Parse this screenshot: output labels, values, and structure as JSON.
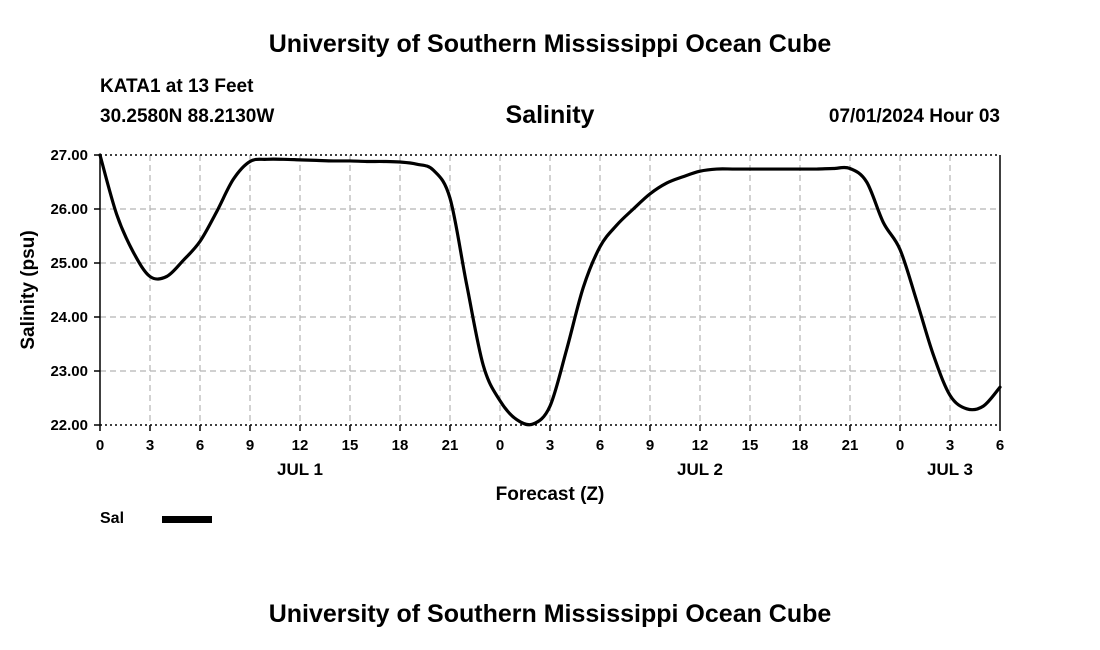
{
  "header": {
    "title": "University of Southern Mississippi Ocean Cube",
    "station": "KATA1 at 13 Feet",
    "coords": "30.2580N  88.2130W",
    "timestamp": "07/01/2024 Hour 03"
  },
  "footer": {
    "title": "University of Southern Mississippi Ocean Cube"
  },
  "chart_data": {
    "type": "line",
    "title": "Salinity",
    "xlabel": "Forecast (Z)",
    "ylabel": "Salinity (psu)",
    "xlim": [
      0,
      54
    ],
    "ylim": [
      22.0,
      27.0
    ],
    "grid": true,
    "y_ticks": [
      "22.00",
      "23.00",
      "24.00",
      "25.00",
      "26.00",
      "27.00"
    ],
    "x_tick_labels": [
      "0",
      "3",
      "6",
      "9",
      "12",
      "15",
      "18",
      "21",
      "0",
      "3",
      "6",
      "9",
      "12",
      "15",
      "18",
      "21",
      "0",
      "3",
      "6"
    ],
    "day_labels": [
      {
        "label": "JUL 1",
        "hour": 12
      },
      {
        "label": "JUL 2",
        "hour": 36
      },
      {
        "label": "JUL 3",
        "hour": 51
      }
    ],
    "legend": [
      {
        "name": "Sal",
        "color": "#000000"
      }
    ],
    "series": [
      {
        "name": "Sal",
        "x": [
          0,
          1,
          2,
          3,
          4,
          5,
          6,
          7,
          8,
          9,
          10,
          11,
          12,
          13,
          14,
          15,
          16,
          17,
          18,
          19,
          20,
          21,
          22,
          23,
          24,
          25,
          26,
          27,
          28,
          29,
          30,
          31,
          32,
          33,
          34,
          35,
          36,
          37,
          38,
          39,
          40,
          41,
          42,
          43,
          44,
          45,
          46,
          47,
          48,
          49,
          50,
          51,
          52,
          53,
          54
        ],
        "values": [
          27.0,
          25.9,
          25.2,
          24.75,
          24.75,
          25.05,
          25.4,
          25.95,
          26.55,
          26.88,
          26.92,
          26.92,
          26.91,
          26.9,
          26.89,
          26.89,
          26.88,
          26.88,
          26.87,
          26.83,
          26.72,
          26.2,
          24.6,
          23.1,
          22.45,
          22.1,
          22.02,
          22.35,
          23.4,
          24.55,
          25.3,
          25.7,
          26.0,
          26.28,
          26.48,
          26.6,
          26.7,
          26.74,
          26.74,
          26.74,
          26.74,
          26.74,
          26.74,
          26.74,
          26.75,
          26.75,
          26.5,
          25.75,
          25.25,
          24.3,
          23.3,
          22.55,
          22.3,
          22.35,
          22.7
        ]
      }
    ]
  }
}
